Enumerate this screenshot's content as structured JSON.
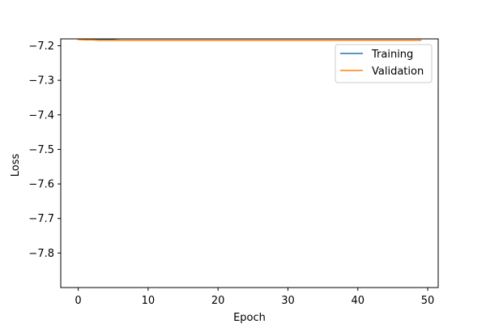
{
  "chart_data": {
    "type": "line",
    "title": "",
    "xlabel": "Epoch",
    "ylabel": "Loss",
    "xlim": [
      -2.5,
      51.5
    ],
    "ylim": [
      -7.9,
      -7.18
    ],
    "xticks": [
      0,
      10,
      20,
      30,
      40,
      50
    ],
    "yticks": [
      -7.2,
      -7.3,
      -7.4,
      -7.5,
      -7.6,
      -7.7,
      -7.8
    ],
    "xtick_labels": [
      "0",
      "10",
      "20",
      "30",
      "40",
      "50"
    ],
    "ytick_labels": [
      "−7.2",
      "−7.3",
      "−7.4",
      "−7.5",
      "−7.6",
      "−7.7",
      "−7.8"
    ],
    "grid": false,
    "legend_position": "top-right",
    "series": [
      {
        "name": "Training",
        "color": "#1f77b4",
        "x": [
          0,
          1,
          2,
          3,
          4,
          5,
          6,
          7,
          8,
          9,
          10,
          11,
          12,
          13,
          14,
          15,
          16,
          17,
          18,
          19,
          20,
          21,
          22,
          23,
          24,
          25,
          26,
          27,
          28,
          29,
          30,
          31,
          32,
          33,
          34,
          35,
          36,
          37,
          38,
          39,
          40,
          41,
          42,
          43,
          44,
          45,
          46,
          47,
          48,
          49
        ],
        "values": [
          -7.181,
          -7.182,
          -7.183,
          -7.183,
          -7.183,
          -7.183,
          -7.184,
          -7.184,
          -7.184,
          -7.184,
          -7.184,
          -7.184,
          -7.184,
          -7.184,
          -7.184,
          -7.184,
          -7.184,
          -7.184,
          -7.184,
          -7.184,
          -7.184,
          -7.184,
          -7.184,
          -7.184,
          -7.184,
          -7.184,
          -7.184,
          -7.184,
          -7.184,
          -7.184,
          -7.184,
          -7.184,
          -7.184,
          -7.184,
          -7.184,
          -7.184,
          -7.184,
          -7.184,
          -7.184,
          -7.184,
          -7.184,
          -7.184,
          -7.184,
          -7.184,
          -7.184,
          -7.184,
          -7.184,
          -7.184,
          -7.184,
          -7.184
        ]
      },
      {
        "name": "Validation",
        "color": "#ff7f0e",
        "x": [
          0,
          1,
          2,
          3,
          4,
          5,
          6,
          7,
          8,
          9,
          10,
          11,
          12,
          13,
          14,
          15,
          16,
          17,
          18,
          19,
          20,
          21,
          22,
          23,
          24,
          25,
          26,
          27,
          28,
          29,
          30,
          31,
          32,
          33,
          34,
          35,
          36,
          37,
          38,
          39,
          40,
          41,
          42,
          43,
          44,
          45,
          46,
          47,
          48,
          49
        ],
        "values": [
          -7.182,
          -7.183,
          -7.183,
          -7.184,
          -7.184,
          -7.184,
          -7.184,
          -7.184,
          -7.184,
          -7.184,
          -7.184,
          -7.184,
          -7.184,
          -7.184,
          -7.184,
          -7.184,
          -7.184,
          -7.184,
          -7.184,
          -7.184,
          -7.184,
          -7.184,
          -7.184,
          -7.184,
          -7.184,
          -7.184,
          -7.184,
          -7.184,
          -7.184,
          -7.184,
          -7.184,
          -7.184,
          -7.184,
          -7.184,
          -7.184,
          -7.184,
          -7.184,
          -7.184,
          -7.184,
          -7.184,
          -7.184,
          -7.184,
          -7.184,
          -7.184,
          -7.184,
          -7.184,
          -7.184,
          -7.184,
          -7.184,
          -7.184
        ]
      }
    ]
  }
}
